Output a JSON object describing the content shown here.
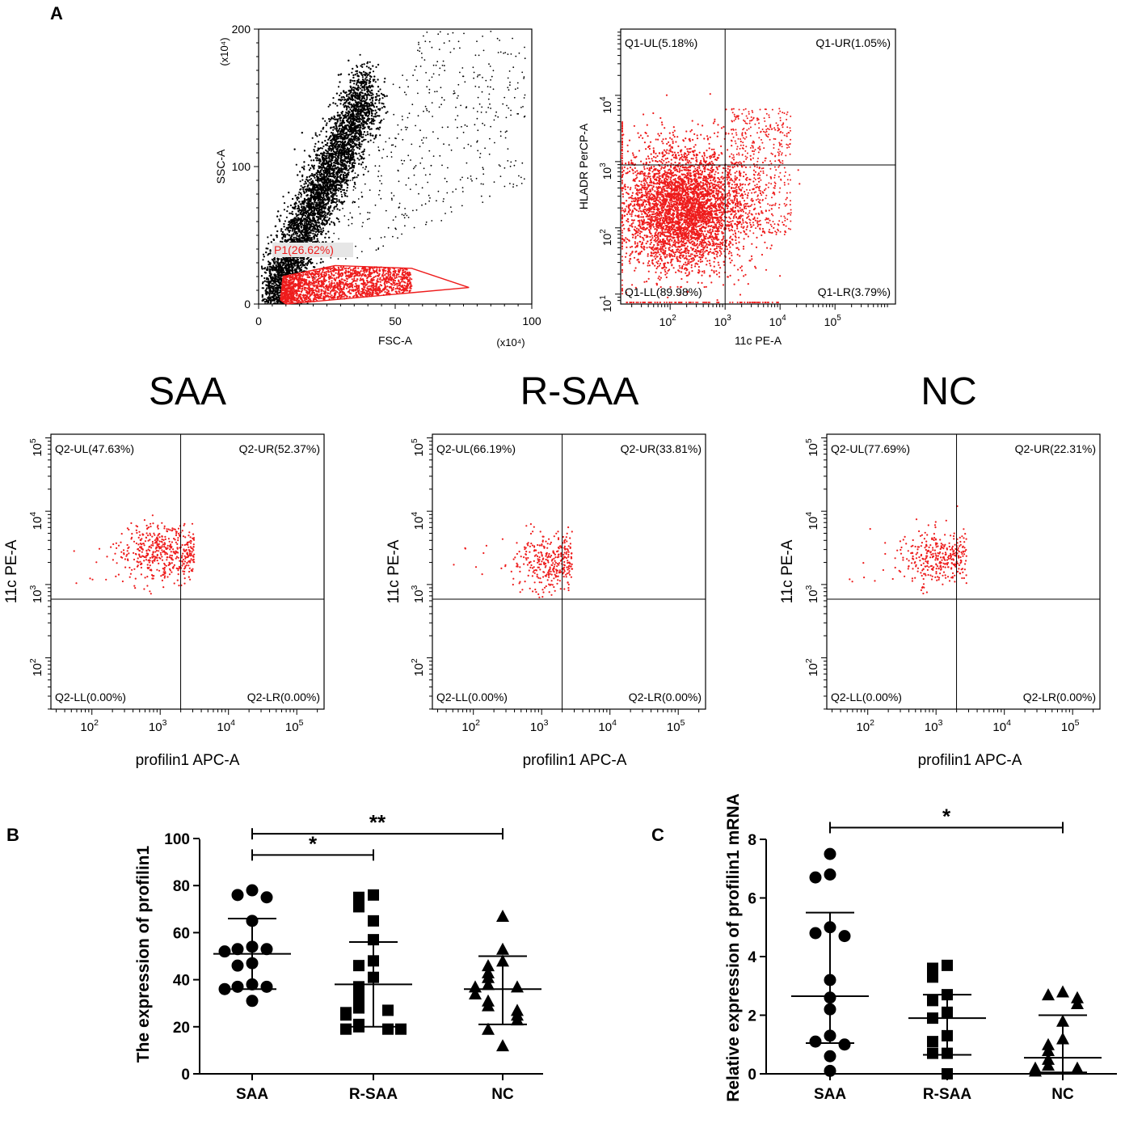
{
  "panel_labels": {
    "a": "A",
    "b": "B",
    "c": "C"
  },
  "chart_data": [
    {
      "id": "fsc_ssc",
      "type": "scatter",
      "title": "",
      "xlabel": "FSC-A",
      "ylabel": "SSC-A",
      "x_multiplier": "(x10⁴)",
      "y_multiplier": "(x10⁴)",
      "xlim": [
        0,
        100
      ],
      "ylim": [
        0,
        200
      ],
      "xticks": [
        {
          "v": 0,
          "label": "0"
        },
        {
          "v": 50,
          "label": "50"
        },
        {
          "v": 100,
          "label": "100"
        }
      ],
      "yticks": [
        {
          "v": 0,
          "label": "0"
        },
        {
          "v": 100,
          "label": "100"
        },
        {
          "v": 200,
          "label": "200"
        }
      ],
      "gate": {
        "name": "P1",
        "label": "P1(26.62%)",
        "percent": 26.62,
        "color": "#ee1c1c",
        "polygon": [
          [
            8,
            3
          ],
          [
            9,
            20
          ],
          [
            28,
            28
          ],
          [
            56,
            26
          ],
          [
            77,
            12
          ],
          [
            10,
            0
          ]
        ]
      },
      "point_color": "#000000"
    },
    {
      "id": "hladr_11c",
      "type": "scatter",
      "xlabel": "11c PE-A",
      "ylabel": "HLADR PerCP-A",
      "scale": "log",
      "xlim": [
        1.1,
        6.1
      ],
      "ylim": [
        0.85,
        5.0
      ],
      "xticks": [
        {
          "v": 2,
          "label": "10",
          "exp": "2"
        },
        {
          "v": 3,
          "label": "10",
          "exp": "3"
        },
        {
          "v": 4,
          "label": "10",
          "exp": "4"
        },
        {
          "v": 5,
          "label": "10",
          "exp": "5"
        }
      ],
      "yticks": [
        {
          "v": 1,
          "label": "10",
          "exp": "1"
        },
        {
          "v": 2,
          "label": "10",
          "exp": "2"
        },
        {
          "v": 3,
          "label": "10",
          "exp": "3"
        },
        {
          "v": 4,
          "label": "10",
          "exp": "4"
        }
      ],
      "gate_x": 3.0,
      "gate_y": 2.95,
      "quadrants": {
        "UL": "Q1-UL(5.18%)",
        "UR": "Q1-UR(1.05%)",
        "LL": "Q1-LL(89.98%)",
        "LR": "Q1-LR(3.79%)"
      },
      "point_color": "#ee1c1c"
    },
    {
      "id": "saa_flow",
      "type": "scatter",
      "group": "SAA",
      "xlabel": "profilin1 APC-A",
      "ylabel": "11c PE-A",
      "scale": "log",
      "xlim": [
        1.4,
        5.4
      ],
      "ylim": [
        1.3,
        5.05
      ],
      "xticks": [
        {
          "v": 2,
          "label": "10",
          "exp": "2"
        },
        {
          "v": 3,
          "label": "10",
          "exp": "3"
        },
        {
          "v": 4,
          "label": "10",
          "exp": "4"
        },
        {
          "v": 5,
          "label": "10",
          "exp": "5"
        }
      ],
      "yticks": [
        {
          "v": 2,
          "label": "10",
          "exp": "2"
        },
        {
          "v": 3,
          "label": "10",
          "exp": "3"
        },
        {
          "v": 4,
          "label": "10",
          "exp": "4"
        },
        {
          "v": 5,
          "label": "10",
          "exp": "5"
        }
      ],
      "gate_x": 3.3,
      "gate_y": 2.8,
      "quadrants": {
        "UL": "Q2-UL(47.63%)",
        "UR": "Q2-UR(52.37%)",
        "LL": "Q2-LL(0.00%)",
        "LR": "Q2-LR(0.00%)"
      },
      "point_color": "#ee1c1c"
    },
    {
      "id": "rsaa_flow",
      "type": "scatter",
      "group": "R-SAA",
      "xlabel": "profilin1 APC-A",
      "ylabel": "11c PE-A",
      "scale": "log",
      "xlim": [
        1.4,
        5.4
      ],
      "ylim": [
        1.3,
        5.05
      ],
      "xticks": [
        {
          "v": 2,
          "label": "10",
          "exp": "2"
        },
        {
          "v": 3,
          "label": "10",
          "exp": "3"
        },
        {
          "v": 4,
          "label": "10",
          "exp": "4"
        },
        {
          "v": 5,
          "label": "10",
          "exp": "5"
        }
      ],
      "yticks": [
        {
          "v": 2,
          "label": "10",
          "exp": "2"
        },
        {
          "v": 3,
          "label": "10",
          "exp": "3"
        },
        {
          "v": 4,
          "label": "10",
          "exp": "4"
        },
        {
          "v": 5,
          "label": "10",
          "exp": "5"
        }
      ],
      "gate_x": 3.3,
      "gate_y": 2.8,
      "quadrants": {
        "UL": "Q2-UL(66.19%)",
        "UR": "Q2-UR(33.81%)",
        "LL": "Q2-LL(0.00%)",
        "LR": "Q2-LR(0.00%)"
      },
      "point_color": "#ee1c1c"
    },
    {
      "id": "nc_flow",
      "type": "scatter",
      "group": "NC",
      "xlabel": "profilin1 APC-A",
      "ylabel": "11c PE-A",
      "scale": "log",
      "xlim": [
        1.4,
        5.4
      ],
      "ylim": [
        1.3,
        5.05
      ],
      "xticks": [
        {
          "v": 2,
          "label": "10",
          "exp": "2"
        },
        {
          "v": 3,
          "label": "10",
          "exp": "3"
        },
        {
          "v": 4,
          "label": "10",
          "exp": "4"
        },
        {
          "v": 5,
          "label": "10",
          "exp": "5"
        }
      ],
      "yticks": [
        {
          "v": 2,
          "label": "10",
          "exp": "2"
        },
        {
          "v": 3,
          "label": "10",
          "exp": "3"
        },
        {
          "v": 4,
          "label": "10",
          "exp": "4"
        },
        {
          "v": 5,
          "label": "10",
          "exp": "5"
        }
      ],
      "gate_x": 3.3,
      "gate_y": 2.8,
      "quadrants": {
        "UL": "Q2-UL(77.69%)",
        "UR": "Q2-UR(22.31%)",
        "LL": "Q2-LL(0.00%)",
        "LR": "Q2-LR(0.00%)"
      },
      "point_color": "#ee1c1c"
    },
    {
      "id": "profilin_expression",
      "type": "scatter",
      "subtype": "dot_plot",
      "ylabel": "The expression of profilin1",
      "categories": [
        "SAA",
        "R-SAA",
        "NC"
      ],
      "ylim": [
        0,
        100
      ],
      "yticks": [
        0,
        20,
        40,
        60,
        80,
        100
      ],
      "series": [
        {
          "name": "SAA",
          "marker": "circle",
          "values": [
            78,
            76,
            75,
            65,
            54,
            53,
            53,
            52,
            47,
            46,
            38,
            37,
            37,
            36,
            31
          ],
          "mean": 51,
          "sd_low": 36,
          "sd_high": 66
        },
        {
          "name": "R-SAA",
          "marker": "square",
          "values": [
            76,
            75,
            71,
            65,
            57,
            48,
            46,
            41,
            37,
            34,
            30,
            28,
            27,
            26,
            25,
            21,
            20,
            19,
            19,
            19
          ],
          "mean": 38,
          "sd_low": 20,
          "sd_high": 56
        },
        {
          "name": "NC",
          "marker": "triangle",
          "values": [
            67,
            53,
            48,
            46,
            43,
            41,
            38,
            37,
            37,
            34,
            31,
            29,
            27,
            25,
            23,
            19,
            12
          ],
          "mean": 36,
          "sd_low": 21,
          "sd_high": 50
        }
      ],
      "significance": [
        {
          "from": "SAA",
          "to": "R-SAA",
          "y": 93,
          "label": "*"
        },
        {
          "from": "SAA",
          "to": "NC",
          "y": 102,
          "label": "**"
        }
      ]
    },
    {
      "id": "profilin_mrna",
      "type": "scatter",
      "subtype": "dot_plot",
      "ylabel": "Relative expression of profilin1 mRNA",
      "categories": [
        "SAA",
        "R-SAA",
        "NC"
      ],
      "ylim": [
        0,
        8
      ],
      "yticks": [
        0,
        2,
        4,
        6,
        8
      ],
      "series": [
        {
          "name": "SAA",
          "marker": "circle",
          "values": [
            7.5,
            6.8,
            6.7,
            5.0,
            4.8,
            4.7,
            3.2,
            2.6,
            2.2,
            1.3,
            1.1,
            1.0,
            0.6,
            0.1
          ],
          "mean": 2.65,
          "sd_low": 1.05,
          "sd_high": 5.5
        },
        {
          "name": "R-SAA",
          "marker": "square",
          "values": [
            3.7,
            3.6,
            3.3,
            2.7,
            2.5,
            2.1,
            1.9,
            1.3,
            1.1,
            0.7,
            0.7,
            0.0
          ],
          "mean": 1.9,
          "sd_low": 0.65,
          "sd_high": 2.7
        },
        {
          "name": "NC",
          "marker": "triangle",
          "values": [
            2.8,
            2.7,
            2.6,
            2.4,
            1.8,
            1.2,
            1.0,
            0.8,
            0.5,
            0.3,
            0.2,
            0.2,
            0.1
          ],
          "mean": 0.55,
          "sd_low": 0.05,
          "sd_high": 2.0
        }
      ],
      "significance": [
        {
          "from": "SAA",
          "to": "NC",
          "y": 8.4,
          "label": "*"
        }
      ]
    }
  ]
}
